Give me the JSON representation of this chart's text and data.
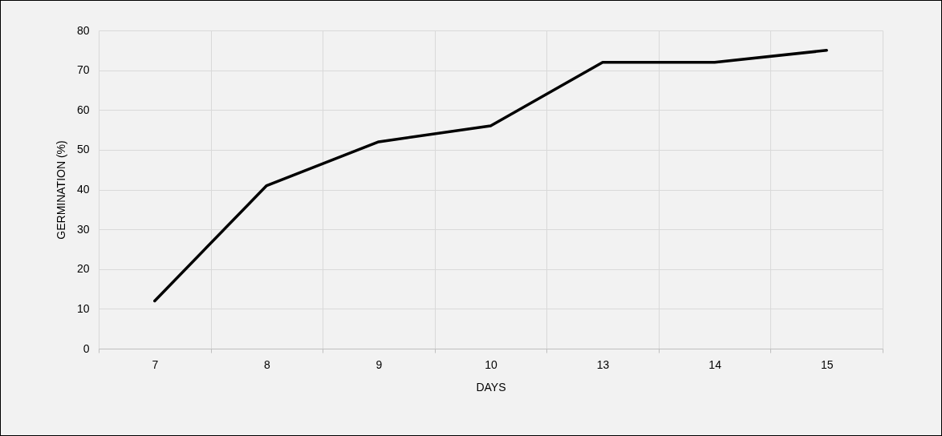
{
  "chart_data": {
    "type": "line",
    "xlabel": "DAYS",
    "ylabel": "GERMINATION (%)",
    "categories": [
      "7",
      "8",
      "9",
      "10",
      "13",
      "14",
      "15"
    ],
    "series": [
      {
        "color": "#000000",
        "values": [
          12,
          41,
          52,
          56,
          72,
          72,
          75
        ]
      }
    ],
    "ylim": [
      0,
      80
    ],
    "yticks": [
      0,
      10,
      20,
      30,
      40,
      50,
      60,
      70,
      80
    ],
    "grid": true,
    "marker": "none",
    "line_style": "solid"
  }
}
